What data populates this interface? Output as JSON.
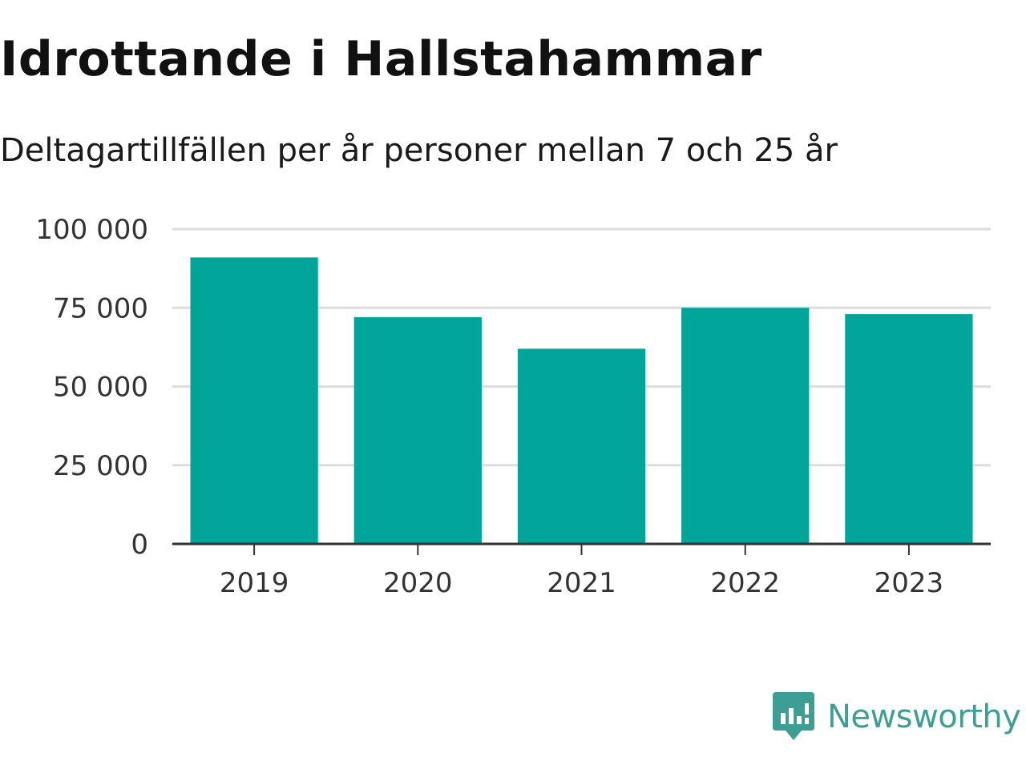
{
  "title": "Idrottande i Hallstahammar",
  "subtitle": "Deltagartillfällen per år personer mellan 7 och 25 år",
  "brand": {
    "name": "Newsworthy",
    "color": "#3d9e93",
    "icon": "newsworthy-logo-icon"
  },
  "chart_data": {
    "type": "bar",
    "categories": [
      "2019",
      "2020",
      "2021",
      "2022",
      "2023"
    ],
    "values": [
      91000,
      72000,
      62000,
      75000,
      73000
    ],
    "ylim": [
      0,
      100000
    ],
    "yticks": [
      0,
      25000,
      50000,
      75000,
      100000
    ],
    "ytick_labels": [
      "0",
      "25 000",
      "50 000",
      "75 000",
      "100 000"
    ],
    "bar_color": "#00a499",
    "grid": true,
    "legend": "none"
  }
}
